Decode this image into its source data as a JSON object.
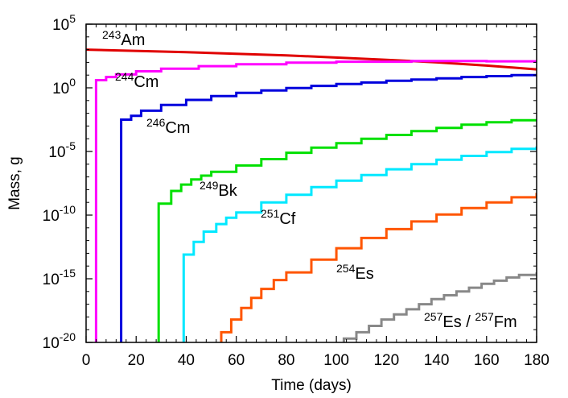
{
  "chart_data": {
    "type": "line",
    "xlabel": "Time (days)",
    "ylabel": "Mass, g",
    "xlim": [
      0,
      180
    ],
    "ylim_exponent": [
      -20,
      5
    ],
    "y_scale": "log",
    "x_ticks": [
      "0",
      "20",
      "40",
      "60",
      "80",
      "100",
      "120",
      "140",
      "160",
      "180"
    ],
    "y_ticks": [
      {
        "base": "10",
        "exp": "5",
        "value_exp": 5
      },
      {
        "base": "10",
        "exp": "0",
        "value_exp": 0
      },
      {
        "base": "10",
        "exp": "-5",
        "value_exp": -5
      },
      {
        "base": "10",
        "exp": "-10",
        "value_exp": -10
      },
      {
        "base": "10",
        "exp": "-15",
        "value_exp": -15
      },
      {
        "base": "10",
        "exp": "-20",
        "value_exp": -20
      }
    ],
    "series": [
      {
        "name": "243Am",
        "label_mass": "243",
        "label_elem": "Am",
        "color": "#e00000",
        "stepped": false,
        "points": [
          [
            0,
            3.0
          ],
          [
            40,
            2.8
          ],
          [
            80,
            2.55
          ],
          [
            120,
            2.2
          ],
          [
            140,
            2.0
          ],
          [
            160,
            1.75
          ],
          [
            180,
            1.45
          ]
        ]
      },
      {
        "name": "244Cm",
        "label_mass": "244",
        "label_elem": "Cm",
        "color": "#ff00ff",
        "stepped": true,
        "points": [
          [
            4,
            -20
          ],
          [
            4,
            0.6
          ],
          [
            8,
            0.85
          ],
          [
            12,
            1.05
          ],
          [
            20,
            1.3
          ],
          [
            30,
            1.5
          ],
          [
            45,
            1.7
          ],
          [
            60,
            1.85
          ],
          [
            80,
            1.98
          ],
          [
            100,
            2.05
          ],
          [
            130,
            2.1
          ],
          [
            160,
            2.08
          ],
          [
            180,
            2.05
          ]
        ]
      },
      {
        "name": "246Cm",
        "label_mass": "246",
        "label_elem": "Cm",
        "color": "#0000dd",
        "stepped": true,
        "points": [
          [
            14,
            -20
          ],
          [
            14,
            -2.5
          ],
          [
            18,
            -2.2
          ],
          [
            22,
            -1.8
          ],
          [
            30,
            -1.35
          ],
          [
            40,
            -0.95
          ],
          [
            50,
            -0.65
          ],
          [
            60,
            -0.4
          ],
          [
            70,
            -0.2
          ],
          [
            80,
            -0.02
          ],
          [
            90,
            0.15
          ],
          [
            100,
            0.3
          ],
          [
            110,
            0.42
          ],
          [
            120,
            0.55
          ],
          [
            130,
            0.65
          ],
          [
            140,
            0.75
          ],
          [
            150,
            0.85
          ],
          [
            160,
            0.92
          ],
          [
            170,
            1.0
          ],
          [
            180,
            1.05
          ]
        ]
      },
      {
        "name": "249Bk",
        "label_mass": "249",
        "label_elem": "Bk",
        "color": "#00e000",
        "stepped": true,
        "points": [
          [
            29,
            -20
          ],
          [
            29,
            -9.1
          ],
          [
            34,
            -8.1
          ],
          [
            38,
            -7.6
          ],
          [
            42,
            -7.2
          ],
          [
            46,
            -6.9
          ],
          [
            50,
            -6.6
          ],
          [
            60,
            -6.1
          ],
          [
            70,
            -5.6
          ],
          [
            80,
            -5.1
          ],
          [
            90,
            -4.7
          ],
          [
            100,
            -4.35
          ],
          [
            110,
            -4.0
          ],
          [
            120,
            -3.7
          ],
          [
            130,
            -3.4
          ],
          [
            140,
            -3.15
          ],
          [
            150,
            -2.9
          ],
          [
            160,
            -2.7
          ],
          [
            170,
            -2.55
          ],
          [
            180,
            -2.45
          ]
        ]
      },
      {
        "name": "251Cf",
        "label_mass": "251",
        "label_elem": "Cf",
        "color": "#00e8ff",
        "stepped": true,
        "points": [
          [
            39,
            -20
          ],
          [
            39,
            -13.1
          ],
          [
            43,
            -12.1
          ],
          [
            47,
            -11.3
          ],
          [
            52,
            -10.7
          ],
          [
            56,
            -10.2
          ],
          [
            60,
            -9.8
          ],
          [
            70,
            -9.0
          ],
          [
            80,
            -8.4
          ],
          [
            90,
            -7.8
          ],
          [
            100,
            -7.3
          ],
          [
            110,
            -6.85
          ],
          [
            120,
            -6.4
          ],
          [
            130,
            -6.0
          ],
          [
            140,
            -5.65
          ],
          [
            150,
            -5.35
          ],
          [
            160,
            -5.05
          ],
          [
            170,
            -4.8
          ],
          [
            180,
            -4.6
          ]
        ]
      },
      {
        "name": "254Es",
        "label_mass": "254",
        "label_elem": "Es",
        "color": "#ff5500",
        "stepped": true,
        "points": [
          [
            54,
            -20
          ],
          [
            54,
            -19.2
          ],
          [
            58,
            -18.2
          ],
          [
            62,
            -17.3
          ],
          [
            66,
            -16.5
          ],
          [
            70,
            -15.8
          ],
          [
            75,
            -15.1
          ],
          [
            80,
            -14.5
          ],
          [
            90,
            -13.5
          ],
          [
            100,
            -12.6
          ],
          [
            110,
            -11.8
          ],
          [
            120,
            -11.1
          ],
          [
            130,
            -10.5
          ],
          [
            140,
            -9.95
          ],
          [
            150,
            -9.45
          ],
          [
            160,
            -9.0
          ],
          [
            170,
            -8.6
          ],
          [
            180,
            -8.25
          ]
        ]
      },
      {
        "name": "257Es / 257Fm",
        "label_mass": "257",
        "label_elem": "Es",
        "label_mass2": "257",
        "label_elem2": "Fm",
        "color": "#888888",
        "stepped": true,
        "points": [
          [
            103,
            -20
          ],
          [
            103,
            -19.7
          ],
          [
            108,
            -19.2
          ],
          [
            113,
            -18.7
          ],
          [
            118,
            -18.2
          ],
          [
            123,
            -17.8
          ],
          [
            128,
            -17.4
          ],
          [
            133,
            -17.0
          ],
          [
            138,
            -16.6
          ],
          [
            143,
            -16.3
          ],
          [
            148,
            -16.0
          ],
          [
            153,
            -15.7
          ],
          [
            158,
            -15.4
          ],
          [
            163,
            -15.15
          ],
          [
            168,
            -14.9
          ],
          [
            173,
            -14.7
          ],
          [
            180,
            -14.5
          ]
        ]
      }
    ]
  }
}
